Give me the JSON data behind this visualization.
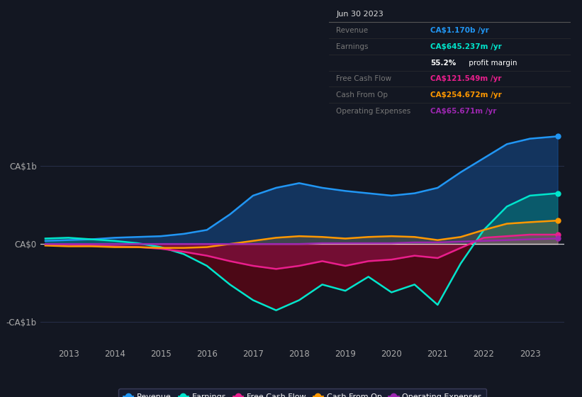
{
  "background_color": "#131722",
  "plot_bg_color": "#131722",
  "ylim": [
    -1300000000.0,
    1550000000.0
  ],
  "yticks_labels": [
    "CA$1b",
    "CA$0",
    "-CA$1b"
  ],
  "yticks_values": [
    1000000000.0,
    0,
    -1000000000.0
  ],
  "xlabel_years": [
    "2013",
    "2014",
    "2015",
    "2016",
    "2017",
    "2018",
    "2019",
    "2020",
    "2021",
    "2022",
    "2023"
  ],
  "legend": [
    {
      "label": "Revenue",
      "color": "#2196f3"
    },
    {
      "label": "Earnings",
      "color": "#00e5cc"
    },
    {
      "label": "Free Cash Flow",
      "color": "#e91e8c"
    },
    {
      "label": "Cash From Op",
      "color": "#ff9800"
    },
    {
      "label": "Operating Expenses",
      "color": "#9c27b0"
    }
  ],
  "x": [
    2012.5,
    2013.0,
    2013.5,
    2014.0,
    2014.5,
    2015.0,
    2015.5,
    2016.0,
    2016.5,
    2017.0,
    2017.5,
    2018.0,
    2018.5,
    2019.0,
    2019.5,
    2020.0,
    2020.5,
    2021.0,
    2021.5,
    2022.0,
    2022.5,
    2023.0,
    2023.6
  ],
  "revenue": [
    40000000.0,
    50000000.0,
    60000000.0,
    80000000.0,
    90000000.0,
    100000000.0,
    130000000.0,
    180000000.0,
    380000000.0,
    620000000.0,
    720000000.0,
    780000000.0,
    720000000.0,
    680000000.0,
    650000000.0,
    620000000.0,
    650000000.0,
    720000000.0,
    920000000.0,
    1100000000.0,
    1280000000.0,
    1350000000.0,
    1380000000.0
  ],
  "earnings": [
    70000000.0,
    80000000.0,
    60000000.0,
    40000000.0,
    10000000.0,
    -40000000.0,
    -130000000.0,
    -280000000.0,
    -520000000.0,
    -720000000.0,
    -850000000.0,
    -720000000.0,
    -520000000.0,
    -600000000.0,
    -420000000.0,
    -620000000.0,
    -520000000.0,
    -780000000.0,
    -250000000.0,
    180000000.0,
    480000000.0,
    620000000.0,
    650000000.0
  ],
  "free_cash_flow": [
    -10000000.0,
    -10000000.0,
    -20000000.0,
    -30000000.0,
    -40000000.0,
    -60000000.0,
    -100000000.0,
    -150000000.0,
    -220000000.0,
    -280000000.0,
    -320000000.0,
    -280000000.0,
    -220000000.0,
    -280000000.0,
    -220000000.0,
    -200000000.0,
    -150000000.0,
    -180000000.0,
    -50000000.0,
    80000000.0,
    100000000.0,
    120000000.0,
    120000000.0
  ],
  "cash_from_op": [
    -20000000.0,
    -30000000.0,
    -30000000.0,
    -40000000.0,
    -40000000.0,
    -50000000.0,
    -50000000.0,
    -40000000.0,
    0.0,
    40000000.0,
    80000000.0,
    100000000.0,
    90000000.0,
    70000000.0,
    90000000.0,
    100000000.0,
    90000000.0,
    50000000.0,
    90000000.0,
    180000000.0,
    260000000.0,
    280000000.0,
    300000000.0
  ],
  "op_expenses": [
    0.0,
    0.0,
    0.0,
    0.0,
    0.0,
    0.0,
    0.0,
    0.0,
    0.0,
    0.0,
    0.0,
    0.0,
    10000000.0,
    10000000.0,
    10000000.0,
    10000000.0,
    20000000.0,
    20000000.0,
    30000000.0,
    40000000.0,
    50000000.0,
    60000000.0,
    70000000.0
  ]
}
